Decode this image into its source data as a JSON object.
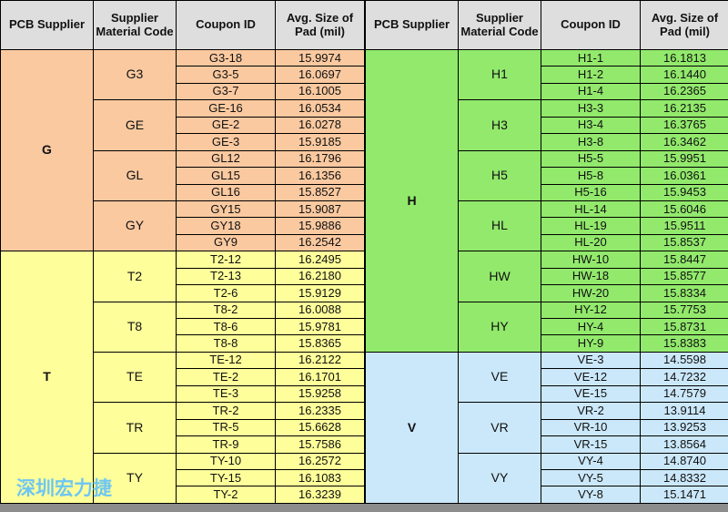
{
  "tables": [
    {
      "headers": [
        "PCB Supplier",
        "Supplier Material Code",
        "Coupon ID",
        "Avg. Size of Pad (mil)"
      ],
      "groups": [
        {
          "supplier": "G",
          "color": "#fac9a0",
          "materials": [
            {
              "code": "G3",
              "rows": [
                [
                  "G3-18",
                  "15.9974"
                ],
                [
                  "G3-5",
                  "16.0697"
                ],
                [
                  "G3-7",
                  "16.1005"
                ]
              ]
            },
            {
              "code": "GE",
              "rows": [
                [
                  "GE-16",
                  "16.0534"
                ],
                [
                  "GE-2",
                  "16.0278"
                ],
                [
                  "GE-3",
                  "15.9185"
                ]
              ]
            },
            {
              "code": "GL",
              "rows": [
                [
                  "GL12",
                  "16.1796"
                ],
                [
                  "GL15",
                  "16.1356"
                ],
                [
                  "GL16",
                  "15.8527"
                ]
              ]
            },
            {
              "code": "GY",
              "rows": [
                [
                  "GY15",
                  "15.9087"
                ],
                [
                  "GY18",
                  "15.9886"
                ],
                [
                  "GY9",
                  "16.2542"
                ]
              ]
            }
          ]
        },
        {
          "supplier": "T",
          "color": "#fefe9a",
          "materials": [
            {
              "code": "T2",
              "rows": [
                [
                  "T2-12",
                  "16.2495"
                ],
                [
                  "T2-13",
                  "16.2180"
                ],
                [
                  "T2-6",
                  "15.9129"
                ]
              ]
            },
            {
              "code": "T8",
              "rows": [
                [
                  "T8-2",
                  "16.0088"
                ],
                [
                  "T8-6",
                  "15.9781"
                ],
                [
                  "T8-8",
                  "15.8365"
                ]
              ]
            },
            {
              "code": "TE",
              "rows": [
                [
                  "TE-12",
                  "16.2122"
                ],
                [
                  "TE-2",
                  "16.1701"
                ],
                [
                  "TE-3",
                  "15.9258"
                ]
              ]
            },
            {
              "code": "TR",
              "rows": [
                [
                  "TR-2",
                  "16.2335"
                ],
                [
                  "TR-5",
                  "15.6628"
                ],
                [
                  "TR-9",
                  "15.7586"
                ]
              ]
            },
            {
              "code": "TY",
              "rows": [
                [
                  "TY-10",
                  "16.2572"
                ],
                [
                  "TY-15",
                  "16.1083"
                ],
                [
                  "TY-2",
                  "16.3239"
                ]
              ]
            }
          ]
        }
      ]
    },
    {
      "headers": [
        "PCB Supplier",
        "Supplier Material Code",
        "Coupon ID",
        "Avg. Size of Pad (mil)"
      ],
      "groups": [
        {
          "supplier": "H",
          "color": "#92e96c",
          "materials": [
            {
              "code": "H1",
              "rows": [
                [
                  "H1-1",
                  "16.1813"
                ],
                [
                  "H1-2",
                  "16.1440"
                ],
                [
                  "H1-4",
                  "16.2365"
                ]
              ]
            },
            {
              "code": "H3",
              "rows": [
                [
                  "H3-3",
                  "16.2135"
                ],
                [
                  "H3-4",
                  "16.3765"
                ],
                [
                  "H3-8",
                  "16.3462"
                ]
              ]
            },
            {
              "code": "H5",
              "rows": [
                [
                  "H5-5",
                  "15.9951"
                ],
                [
                  "H5-8",
                  "16.0361"
                ],
                [
                  "H5-16",
                  "15.9453"
                ]
              ]
            },
            {
              "code": "HL",
              "rows": [
                [
                  "HL-14",
                  "15.6046"
                ],
                [
                  "HL-19",
                  "15.9511"
                ],
                [
                  "HL-20",
                  "15.8537"
                ]
              ]
            },
            {
              "code": "HW",
              "rows": [
                [
                  "HW-10",
                  "15.8447"
                ],
                [
                  "HW-18",
                  "15.8577"
                ],
                [
                  "HW-20",
                  "15.8334"
                ]
              ]
            },
            {
              "code": "HY",
              "rows": [
                [
                  "HY-12",
                  "15.7753"
                ],
                [
                  "HY-4",
                  "15.8731"
                ],
                [
                  "HY-9",
                  "15.8383"
                ]
              ]
            }
          ]
        },
        {
          "supplier": "V",
          "color": "#cbe8fa",
          "materials": [
            {
              "code": "VE",
              "rows": [
                [
                  "VE-3",
                  "14.5598"
                ],
                [
                  "VE-12",
                  "14.7232"
                ],
                [
                  "VE-15",
                  "14.7579"
                ]
              ]
            },
            {
              "code": "VR",
              "rows": [
                [
                  "VR-2",
                  "13.9114"
                ],
                [
                  "VR-10",
                  "13.9253"
                ],
                [
                  "VR-15",
                  "13.8564"
                ]
              ]
            },
            {
              "code": "VY",
              "rows": [
                [
                  "VY-4",
                  "14.8740"
                ],
                [
                  "VY-5",
                  "14.8332"
                ],
                [
                  "VY-8",
                  "15.1471"
                ]
              ]
            }
          ]
        }
      ]
    }
  ],
  "watermark": "深圳宏力捷"
}
